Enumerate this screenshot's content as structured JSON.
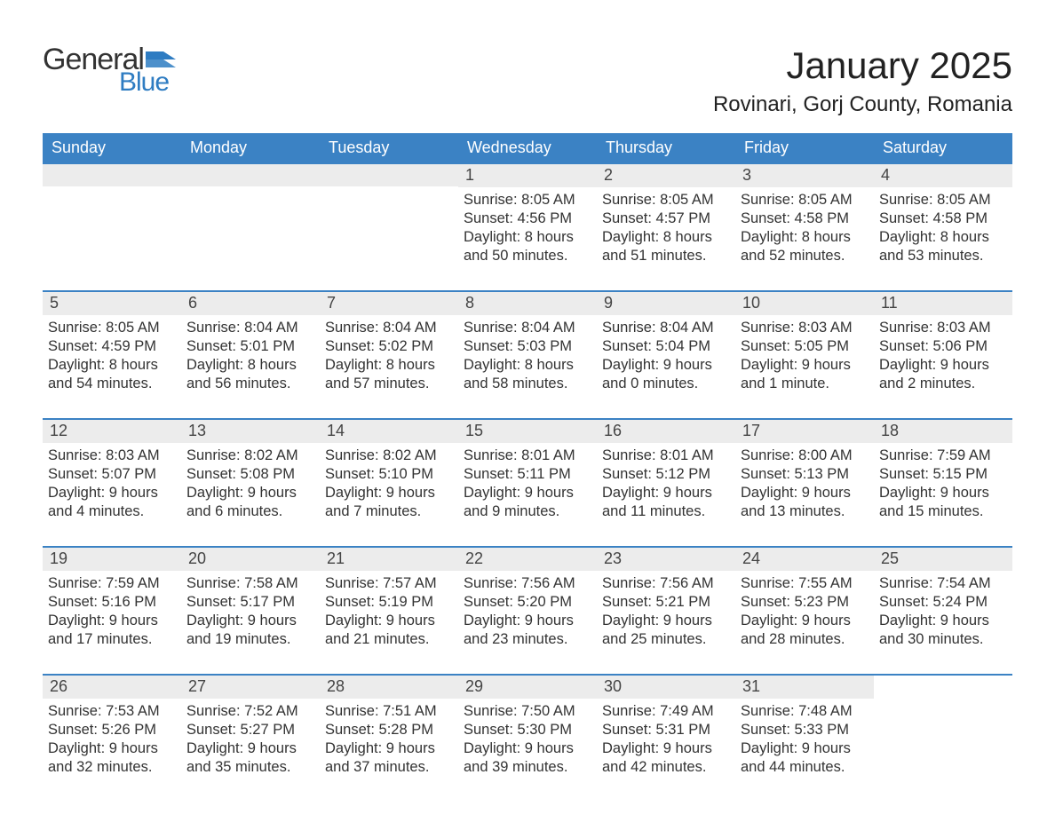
{
  "logo": {
    "general": "General",
    "blue": "Blue",
    "flag_color": "#2e7cc2"
  },
  "title": "January 2025",
  "location": "Rovinari, Gorj County, Romania",
  "colors": {
    "header_bg": "#3b82c4",
    "header_text": "#ffffff",
    "daynum_bg": "#ececec",
    "daynum_text": "#444444",
    "body_text": "#333333",
    "divider": "#3b82c4",
    "background": "#ffffff"
  },
  "typography": {
    "title_fontsize": 42,
    "location_fontsize": 24,
    "dow_fontsize": 18,
    "daynum_fontsize": 18,
    "body_fontsize": 16.5
  },
  "days_of_week": [
    "Sunday",
    "Monday",
    "Tuesday",
    "Wednesday",
    "Thursday",
    "Friday",
    "Saturday"
  ],
  "weeks": [
    [
      {
        "blank": true
      },
      {
        "blank": true
      },
      {
        "blank": true
      },
      {
        "n": "1",
        "sunrise": "8:05 AM",
        "sunset": "4:56 PM",
        "daylight": "8 hours and 50 minutes."
      },
      {
        "n": "2",
        "sunrise": "8:05 AM",
        "sunset": "4:57 PM",
        "daylight": "8 hours and 51 minutes."
      },
      {
        "n": "3",
        "sunrise": "8:05 AM",
        "sunset": "4:58 PM",
        "daylight": "8 hours and 52 minutes."
      },
      {
        "n": "4",
        "sunrise": "8:05 AM",
        "sunset": "4:58 PM",
        "daylight": "8 hours and 53 minutes."
      }
    ],
    [
      {
        "n": "5",
        "sunrise": "8:05 AM",
        "sunset": "4:59 PM",
        "daylight": "8 hours and 54 minutes."
      },
      {
        "n": "6",
        "sunrise": "8:04 AM",
        "sunset": "5:01 PM",
        "daylight": "8 hours and 56 minutes."
      },
      {
        "n": "7",
        "sunrise": "8:04 AM",
        "sunset": "5:02 PM",
        "daylight": "8 hours and 57 minutes."
      },
      {
        "n": "8",
        "sunrise": "8:04 AM",
        "sunset": "5:03 PM",
        "daylight": "8 hours and 58 minutes."
      },
      {
        "n": "9",
        "sunrise": "8:04 AM",
        "sunset": "5:04 PM",
        "daylight": "9 hours and 0 minutes."
      },
      {
        "n": "10",
        "sunrise": "8:03 AM",
        "sunset": "5:05 PM",
        "daylight": "9 hours and 1 minute."
      },
      {
        "n": "11",
        "sunrise": "8:03 AM",
        "sunset": "5:06 PM",
        "daylight": "9 hours and 2 minutes."
      }
    ],
    [
      {
        "n": "12",
        "sunrise": "8:03 AM",
        "sunset": "5:07 PM",
        "daylight": "9 hours and 4 minutes."
      },
      {
        "n": "13",
        "sunrise": "8:02 AM",
        "sunset": "5:08 PM",
        "daylight": "9 hours and 6 minutes."
      },
      {
        "n": "14",
        "sunrise": "8:02 AM",
        "sunset": "5:10 PM",
        "daylight": "9 hours and 7 minutes."
      },
      {
        "n": "15",
        "sunrise": "8:01 AM",
        "sunset": "5:11 PM",
        "daylight": "9 hours and 9 minutes."
      },
      {
        "n": "16",
        "sunrise": "8:01 AM",
        "sunset": "5:12 PM",
        "daylight": "9 hours and 11 minutes."
      },
      {
        "n": "17",
        "sunrise": "8:00 AM",
        "sunset": "5:13 PM",
        "daylight": "9 hours and 13 minutes."
      },
      {
        "n": "18",
        "sunrise": "7:59 AM",
        "sunset": "5:15 PM",
        "daylight": "9 hours and 15 minutes."
      }
    ],
    [
      {
        "n": "19",
        "sunrise": "7:59 AM",
        "sunset": "5:16 PM",
        "daylight": "9 hours and 17 minutes."
      },
      {
        "n": "20",
        "sunrise": "7:58 AM",
        "sunset": "5:17 PM",
        "daylight": "9 hours and 19 minutes."
      },
      {
        "n": "21",
        "sunrise": "7:57 AM",
        "sunset": "5:19 PM",
        "daylight": "9 hours and 21 minutes."
      },
      {
        "n": "22",
        "sunrise": "7:56 AM",
        "sunset": "5:20 PM",
        "daylight": "9 hours and 23 minutes."
      },
      {
        "n": "23",
        "sunrise": "7:56 AM",
        "sunset": "5:21 PM",
        "daylight": "9 hours and 25 minutes."
      },
      {
        "n": "24",
        "sunrise": "7:55 AM",
        "sunset": "5:23 PM",
        "daylight": "9 hours and 28 minutes."
      },
      {
        "n": "25",
        "sunrise": "7:54 AM",
        "sunset": "5:24 PM",
        "daylight": "9 hours and 30 minutes."
      }
    ],
    [
      {
        "n": "26",
        "sunrise": "7:53 AM",
        "sunset": "5:26 PM",
        "daylight": "9 hours and 32 minutes."
      },
      {
        "n": "27",
        "sunrise": "7:52 AM",
        "sunset": "5:27 PM",
        "daylight": "9 hours and 35 minutes."
      },
      {
        "n": "28",
        "sunrise": "7:51 AM",
        "sunset": "5:28 PM",
        "daylight": "9 hours and 37 minutes."
      },
      {
        "n": "29",
        "sunrise": "7:50 AM",
        "sunset": "5:30 PM",
        "daylight": "9 hours and 39 minutes."
      },
      {
        "n": "30",
        "sunrise": "7:49 AM",
        "sunset": "5:31 PM",
        "daylight": "9 hours and 42 minutes."
      },
      {
        "n": "31",
        "sunrise": "7:48 AM",
        "sunset": "5:33 PM",
        "daylight": "9 hours and 44 minutes."
      },
      {
        "blank": true,
        "no_stripe": true
      }
    ]
  ],
  "labels": {
    "sunrise": "Sunrise: ",
    "sunset": "Sunset: ",
    "daylight": "Daylight: "
  }
}
